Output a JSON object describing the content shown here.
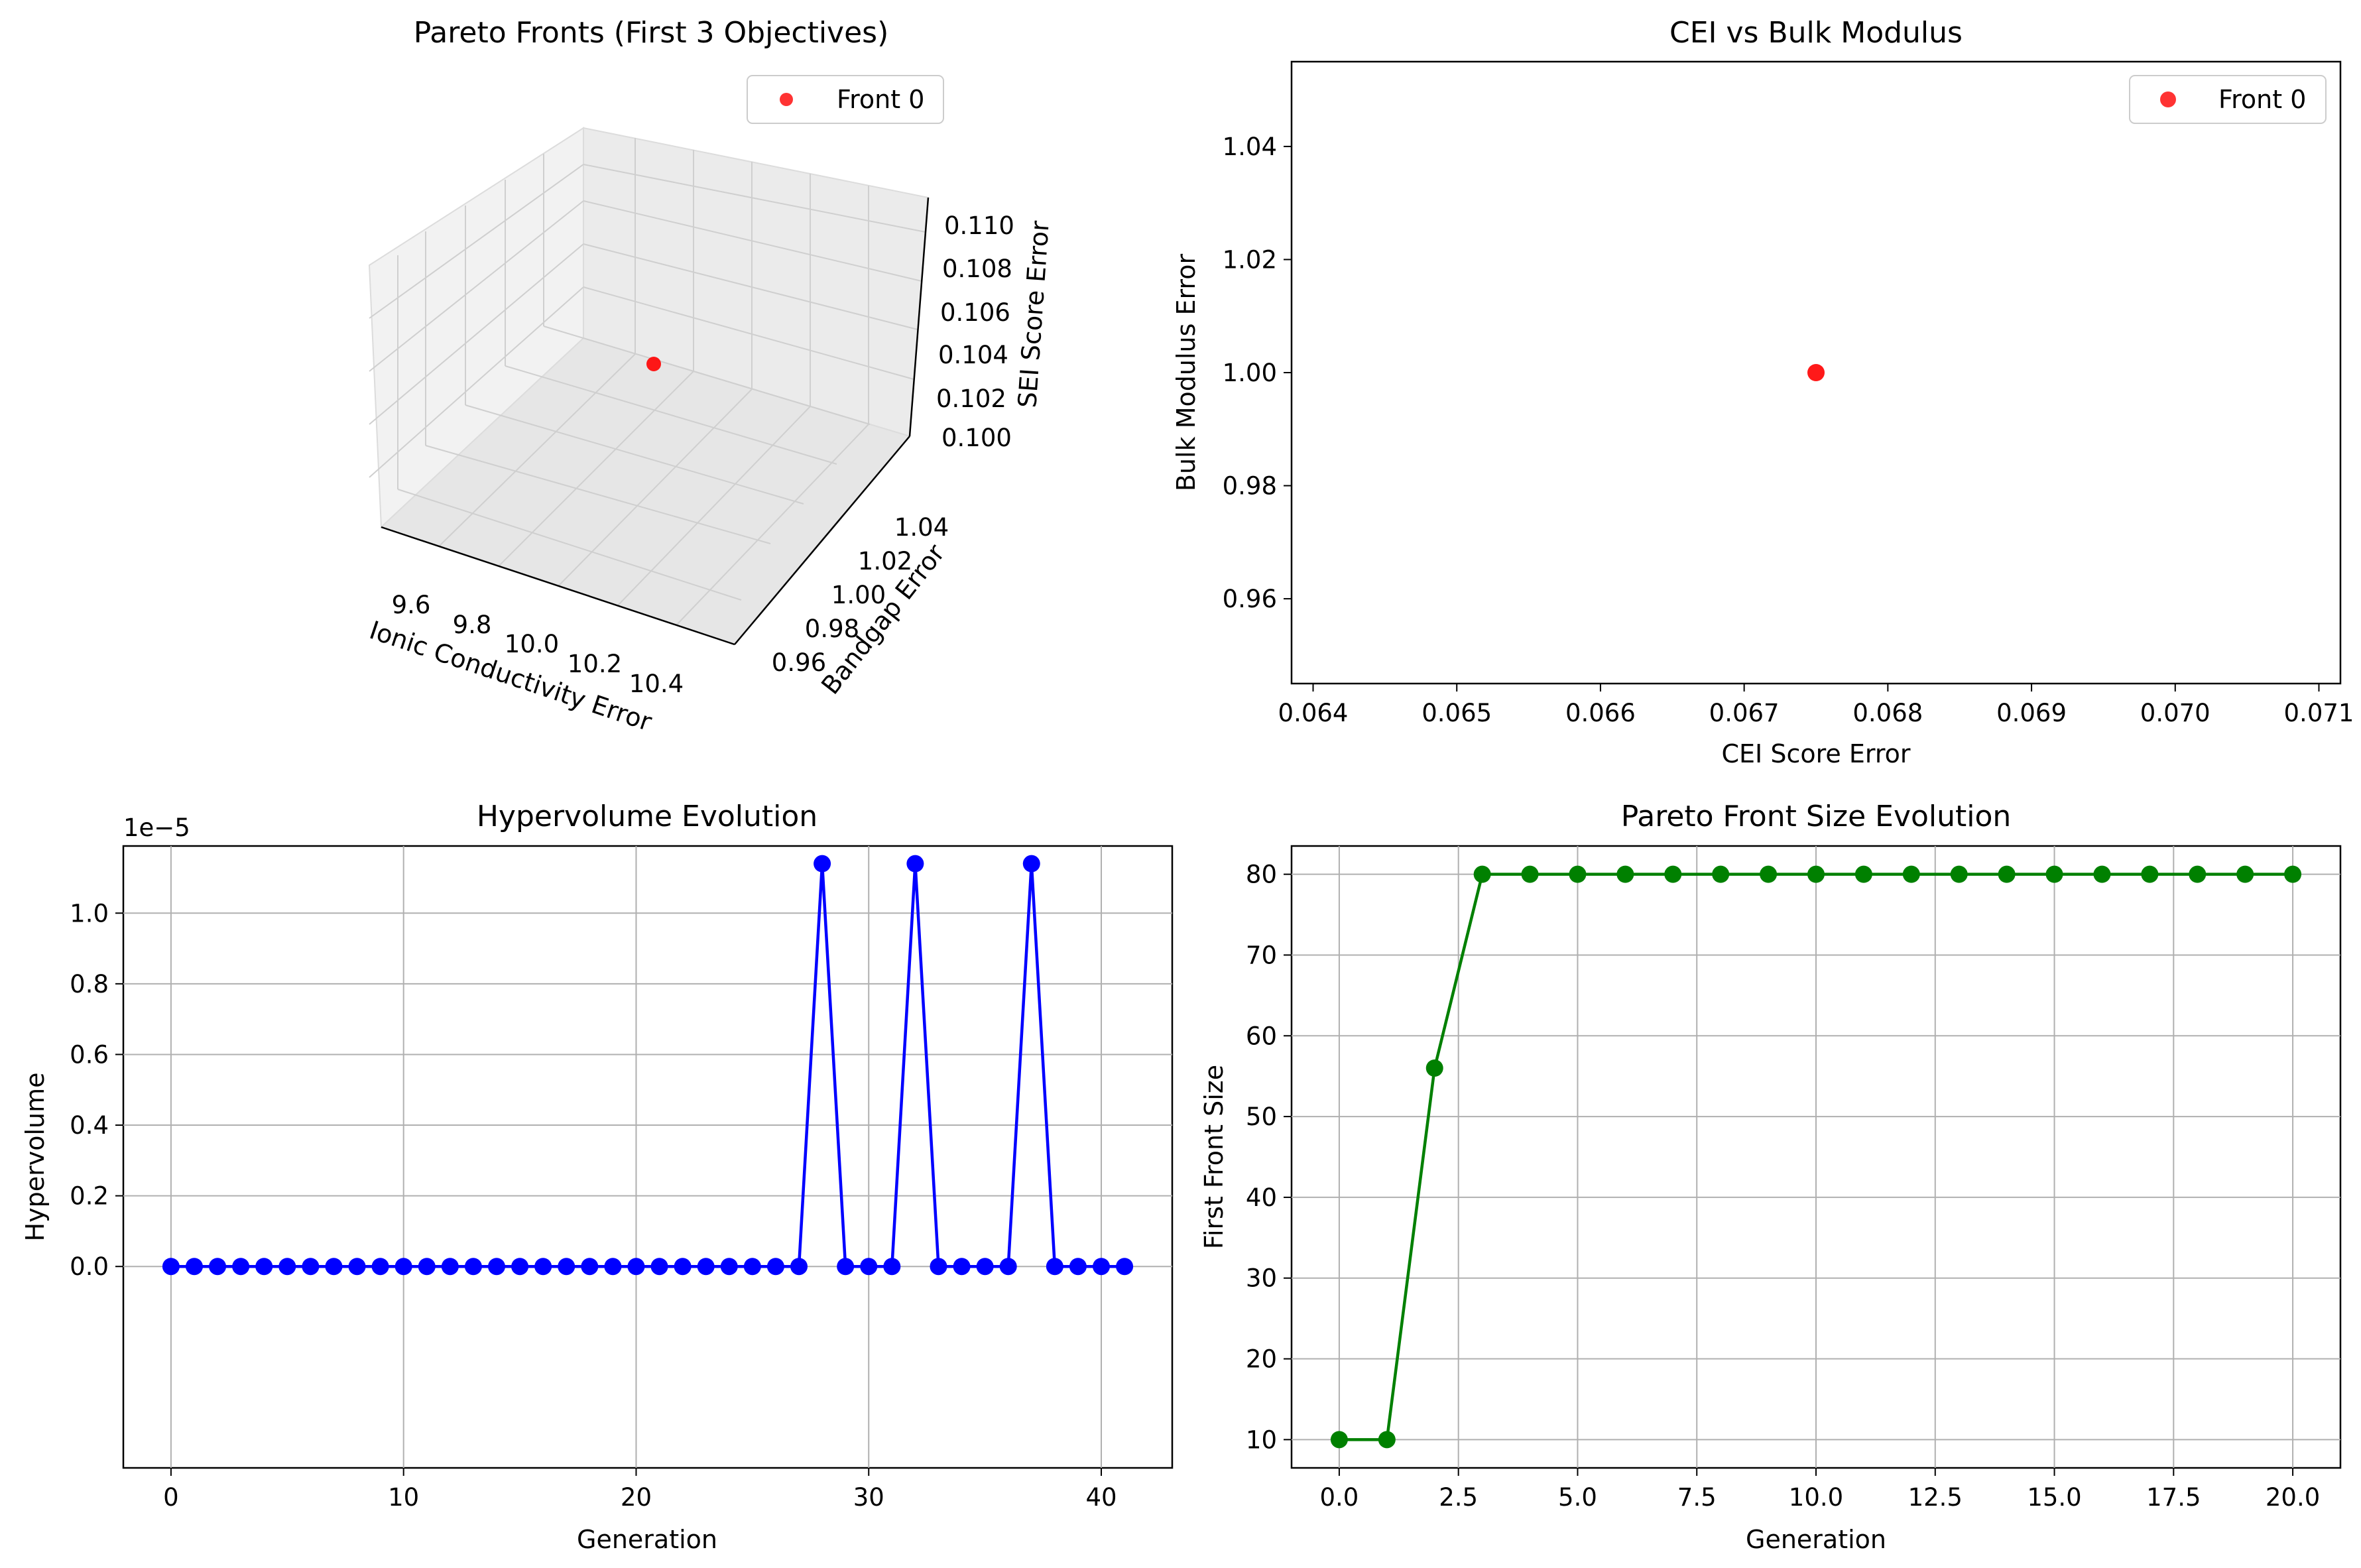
{
  "colors": {
    "front": "#ff0000",
    "hypervolume": "#0000ff",
    "front_size": "#008000",
    "grid": "#b0b0b0",
    "axis": "#000000"
  },
  "chart_data": [
    {
      "id": "pareto3d",
      "type": "scatter",
      "title": "Pareto Fronts (First 3 Objectives)",
      "xlabel": "Ionic Conductivity Error",
      "ylabel": "Bandgap Error",
      "zlabel": "SEI Score Error",
      "xticks": [
        "9.6",
        "9.8",
        "10.0",
        "10.2",
        "10.4"
      ],
      "yticks": [
        "0.96",
        "0.98",
        "1.00",
        "1.02",
        "1.04"
      ],
      "zticks": [
        "0.100",
        "0.102",
        "0.104",
        "0.106",
        "0.108",
        "0.110"
      ],
      "legend": "top-right",
      "series": [
        {
          "name": "Front 0",
          "points": [
            {
              "x": 10.0,
              "y": 1.0,
              "z": 0.105
            }
          ]
        }
      ]
    },
    {
      "id": "cei",
      "type": "scatter",
      "title": "CEI vs Bulk Modulus",
      "xlabel": "CEI Score Error",
      "ylabel": "Bulk Modulus Error",
      "xlim": [
        0.06385,
        0.07115
      ],
      "ylim": [
        0.945,
        1.055
      ],
      "xticks": [
        0.064,
        0.065,
        0.066,
        0.067,
        0.068,
        0.069,
        0.07,
        0.071
      ],
      "xtick_labels": [
        "0.064",
        "0.065",
        "0.066",
        "0.067",
        "0.068",
        "0.069",
        "0.070",
        "0.071"
      ],
      "yticks": [
        0.96,
        0.98,
        1.0,
        1.02,
        1.04
      ],
      "ytick_labels": [
        "0.96",
        "0.98",
        "1.00",
        "1.02",
        "1.04"
      ],
      "grid": false,
      "legend": "top-right",
      "series": [
        {
          "name": "Front 0",
          "points": [
            {
              "x": 0.0675,
              "y": 1.0
            }
          ]
        }
      ]
    },
    {
      "id": "hv",
      "type": "line",
      "title": "Hypervolume Evolution",
      "xlabel": "Generation",
      "ylabel": "Hypervolume",
      "offset_text": "1e−5",
      "scale": 1e-05,
      "xlim": [
        -2.05,
        43.05
      ],
      "ylim": [
        -5.7e-06,
        1.19e-05
      ],
      "xticks": [
        0,
        10,
        20,
        30,
        40
      ],
      "xtick_labels": [
        "0",
        "10",
        "20",
        "30",
        "40"
      ],
      "yticks": [
        0,
        2e-06,
        4e-06,
        6e-06,
        8e-06,
        1e-05
      ],
      "ytick_labels": [
        "0.0",
        "0.2",
        "0.4",
        "0.6",
        "0.8",
        "1.0"
      ],
      "grid": true,
      "x": [
        0,
        1,
        2,
        3,
        4,
        5,
        6,
        7,
        8,
        9,
        10,
        11,
        12,
        13,
        14,
        15,
        16,
        17,
        18,
        19,
        20,
        21,
        22,
        23,
        24,
        25,
        26,
        27,
        28,
        29,
        30,
        31,
        32,
        33,
        34,
        35,
        36,
        37,
        38,
        39,
        40,
        41
      ],
      "y": [
        0,
        0,
        0,
        0,
        0,
        0,
        0,
        0,
        0,
        0,
        0,
        0,
        0,
        0,
        0,
        0,
        0,
        0,
        0,
        0,
        0,
        0,
        0,
        0,
        0,
        0,
        0,
        0,
        1.14e-05,
        0,
        0,
        0,
        1.14e-05,
        0,
        0,
        0,
        0,
        1.14e-05,
        0,
        0,
        0,
        0
      ]
    },
    {
      "id": "fs",
      "type": "line",
      "title": "Pareto Front Size Evolution",
      "xlabel": "Generation",
      "ylabel": "First Front Size",
      "xlim": [
        -1.0,
        21.0
      ],
      "ylim": [
        6.5,
        83.5
      ],
      "xticks": [
        0,
        2.5,
        5,
        7.5,
        10,
        12.5,
        15,
        17.5,
        20
      ],
      "xtick_labels": [
        "0.0",
        "2.5",
        "5.0",
        "7.5",
        "10.0",
        "12.5",
        "15.0",
        "17.5",
        "20.0"
      ],
      "yticks": [
        10,
        20,
        30,
        40,
        50,
        60,
        70,
        80
      ],
      "ytick_labels": [
        "10",
        "20",
        "30",
        "40",
        "50",
        "60",
        "70",
        "80"
      ],
      "grid": true,
      "x": [
        0,
        1,
        2,
        3,
        4,
        5,
        6,
        7,
        8,
        9,
        10,
        11,
        12,
        13,
        14,
        15,
        16,
        17,
        18,
        19,
        20
      ],
      "y": [
        10,
        10,
        56,
        80,
        80,
        80,
        80,
        80,
        80,
        80,
        80,
        80,
        80,
        80,
        80,
        80,
        80,
        80,
        80,
        80,
        80
      ]
    }
  ]
}
